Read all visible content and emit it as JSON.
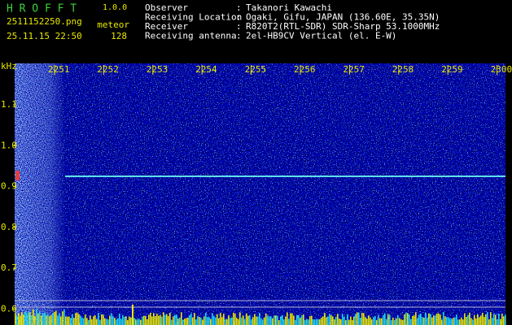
{
  "header": {
    "app_name": "H R O F F T",
    "version": "1.0.0",
    "filename": "2511152250.png",
    "timestamp": "25.11.15 22:50",
    "mode": "meteor",
    "count": "128",
    "separator": ":",
    "info": [
      {
        "label": "Observer",
        "value": "Takanori Kawachi"
      },
      {
        "label": "Receiving Location",
        "value": "Ogaki, Gifu, JAPAN (136.60E, 35.35N)"
      },
      {
        "label": "Receiver",
        "value": "R820T2(RTL-SDR) SDR-Sharp 53.1000MHz"
      },
      {
        "label": "Receiving antenna",
        "value": "2el-HB9CV Vertical (el. E-W)"
      }
    ]
  },
  "axis": {
    "y_unit": "kHz",
    "x_labels": [
      "2251",
      "2252",
      "2253",
      "2254",
      "2255",
      "2256",
      "2257",
      "2258",
      "2259",
      "2300"
    ],
    "y_labels": [
      "1.1",
      "1.0",
      "0.9",
      "0.8",
      "0.7",
      "0.6"
    ]
  }
}
